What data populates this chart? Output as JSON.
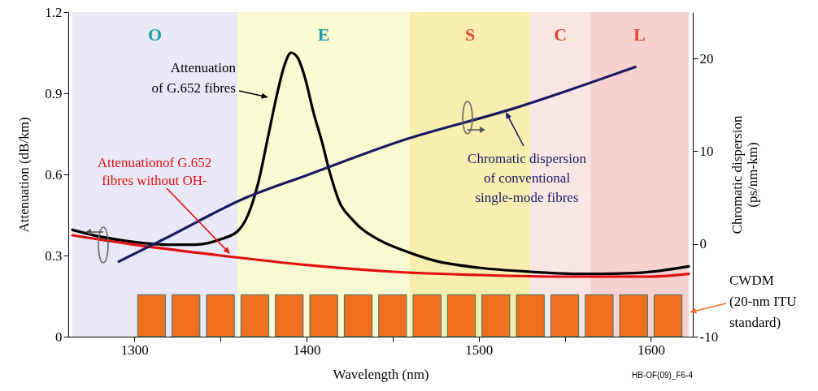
{
  "chart_data": {
    "type": "line",
    "xlabel": "Wavelength (nm)",
    "ylabel": "Attenuation (dB/km)",
    "y2label": "Chromatic dispersion (ps/nm-km)",
    "xlim": [
      1264,
      1622
    ],
    "xticks": [
      1300,
      {
        "value": 1350,
        "label": null
      },
      1400,
      {
        "value": 1450,
        "label": null
      },
      1500,
      {
        "value": 1550,
        "label": null
      },
      1600
    ],
    "ylim": [
      0,
      1.2
    ],
    "yticks": [
      0,
      0.3,
      0.6,
      0.9,
      1.2
    ],
    "y2lim": [
      -10,
      25
    ],
    "y2ticks": [
      -10,
      0,
      10,
      20
    ],
    "series": [
      {
        "name": "Attenuation of G.652 fibres",
        "color": "#000000",
        "x": [
          1264,
          1280,
          1300,
          1320,
          1335,
          1350,
          1360,
          1366,
          1372,
          1378,
          1383,
          1387,
          1391,
          1395,
          1399,
          1404,
          1409,
          1413,
          1419,
          1427,
          1443,
          1458,
          1475,
          1500,
          1530,
          1560,
          1590,
          1622
        ],
        "values": [
          0.395,
          0.37,
          0.35,
          0.34,
          0.34,
          0.36,
          0.39,
          0.45,
          0.57,
          0.75,
          0.9,
          1.0,
          1.05,
          1.03,
          0.96,
          0.83,
          0.72,
          0.62,
          0.5,
          0.43,
          0.355,
          0.315,
          0.28,
          0.255,
          0.24,
          0.232,
          0.235,
          0.26
        ]
      },
      {
        "name": "Attenuationof G.652 fibres without OH-",
        "color": "#e01010",
        "x": [
          1264,
          1300,
          1350,
          1400,
          1450,
          1500,
          1550,
          1600,
          1622
        ],
        "values": [
          0.375,
          0.34,
          0.3,
          0.265,
          0.24,
          0.228,
          0.222,
          0.222,
          0.232
        ]
      },
      {
        "name": "Chromatic dispersion of conventional single-mode fibres",
        "color": "#1a1a60",
        "axis": "y2",
        "x": [
          1291,
          1318,
          1365,
          1400,
          1458,
          1520,
          1551,
          1591
        ],
        "values": [
          -1.9,
          0.6,
          5.0,
          7.4,
          11.3,
          14.6,
          16.5,
          19.1
        ]
      },
      {
        "name": "CWDM (20-nm ITU standard)",
        "type": "bar",
        "color": "#f07020",
        "x": [
          1310,
          1330,
          1350,
          1370,
          1390,
          1410,
          1430,
          1450,
          1470,
          1490,
          1510,
          1530,
          1550,
          1570,
          1590,
          1610
        ],
        "values": [
          0.155,
          0.155,
          0.155,
          0.155,
          0.155,
          0.155,
          0.155,
          0.155,
          0.155,
          0.155,
          0.155,
          0.155,
          0.155,
          0.155,
          0.155,
          0.155
        ]
      }
    ],
    "bands": [
      {
        "axis": "x",
        "from": 1264,
        "to": 1360,
        "label": "O",
        "color": "#e8e8f6"
      },
      {
        "axis": "x",
        "from": 1360,
        "to": 1460,
        "label": "E",
        "color": "#fafad2"
      },
      {
        "axis": "x",
        "from": 1460,
        "to": 1530,
        "label": "S",
        "color": "#f8eeb0"
      },
      {
        "axis": "x",
        "from": 1530,
        "to": 1565,
        "label": "C",
        "color": "#f8e6e4"
      },
      {
        "axis": "x",
        "from": 1565,
        "to": 1622,
        "label": "L",
        "color": "#f8d2d0"
      }
    ],
    "annotations": [
      "HB-OF(09)_F6-4"
    ]
  }
}
